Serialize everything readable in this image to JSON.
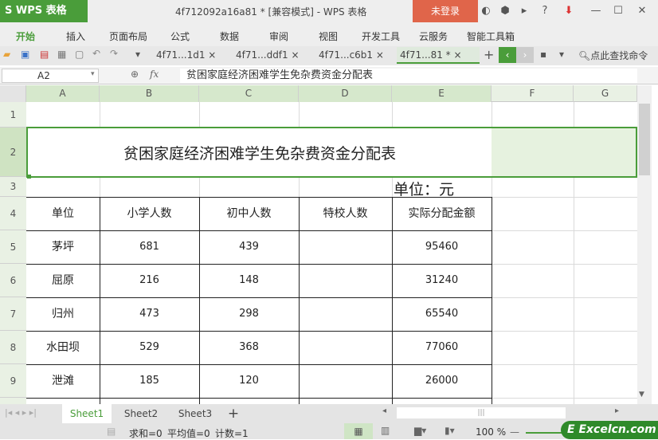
{
  "app": {
    "logo": "S WPS 表格",
    "title": "4f712092a16a81 * [兼容模式] - WPS 表格",
    "login": "未登录",
    "window_icons": [
      "skin-icon",
      "settings-icon",
      "doc-icon",
      "help-icon",
      "download-icon",
      "minimize-icon",
      "maximize-icon",
      "close-icon"
    ]
  },
  "menu": [
    "开始",
    "插入",
    "页面布局",
    "公式",
    "数据",
    "审阅",
    "视图",
    "开发工具",
    "云服务",
    "智能工具箱"
  ],
  "doc_tabs": [
    {
      "label": "4f71...1d1",
      "close": "×"
    },
    {
      "label": "4f71...ddf1",
      "close": "×"
    },
    {
      "label": "4f71...c6b1",
      "close": "×"
    },
    {
      "label": "4f71...81 *",
      "close": "×",
      "active": true
    }
  ],
  "toolbar": {
    "add_tab": "+",
    "search": "点此查找命令"
  },
  "formula": {
    "cell_ref": "A2",
    "fx": "fx",
    "value": "贫困家庭经济困难学生免杂费资金分配表"
  },
  "columns": [
    "A",
    "B",
    "C",
    "D",
    "E",
    "F",
    "G"
  ],
  "rows": [
    "1",
    "2",
    "3",
    "4",
    "5",
    "6",
    "7",
    "8",
    "9"
  ],
  "sheet": {
    "title": "贫困家庭经济困难学生免杂费资金分配表",
    "unit": "单位：元",
    "headers": [
      "单位",
      "小学人数",
      "初中人数",
      "特校人数",
      "实际分配金额"
    ],
    "data": [
      [
        "茅坪",
        "681",
        "439",
        "",
        "95460"
      ],
      [
        "屈原",
        "216",
        "148",
        "",
        "31240"
      ],
      [
        "归州",
        "473",
        "298",
        "",
        "65540"
      ],
      [
        "水田坝",
        "529",
        "368",
        "",
        "77060"
      ],
      [
        "泄滩",
        "185",
        "120",
        "",
        "26000"
      ]
    ]
  },
  "sheet_tabs": [
    "Sheet1",
    "Sheet2",
    "Sheet3"
  ],
  "add_sheet": "+",
  "status": {
    "sum": "求和=0",
    "avg": "平均值=0",
    "count": "计数=1",
    "zoom": "100 %"
  },
  "watermark": "Excelcn.com",
  "colors": {
    "accent": "#4a9d3a",
    "login": "#e0654a"
  }
}
